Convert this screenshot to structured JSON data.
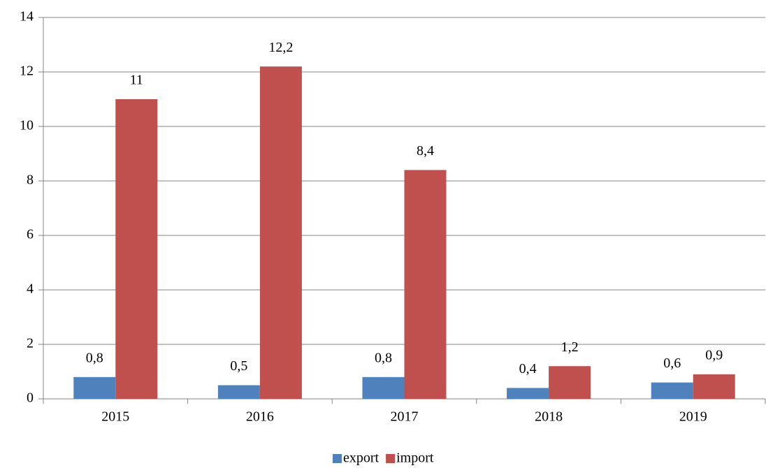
{
  "chart_data": {
    "type": "bar",
    "categories": [
      "2015",
      "2016",
      "2017",
      "2018",
      "2019"
    ],
    "series": [
      {
        "name": "export",
        "color": "#4f81bd",
        "values": [
          0.8,
          0.5,
          0.8,
          0.4,
          0.6
        ],
        "value_labels": [
          "0,8",
          "0,5",
          "0,8",
          "0,4",
          "0,6"
        ]
      },
      {
        "name": "import",
        "color": "#c0504d",
        "values": [
          11,
          12.2,
          8.4,
          1.2,
          0.9
        ],
        "value_labels": [
          "11",
          "12,2",
          "8,4",
          "1,2",
          "0,9"
        ]
      }
    ],
    "ylim": [
      0,
      14
    ],
    "yticks": [
      0,
      2,
      4,
      6,
      8,
      10,
      12,
      14
    ],
    "grid": true,
    "legend": "bottom"
  }
}
